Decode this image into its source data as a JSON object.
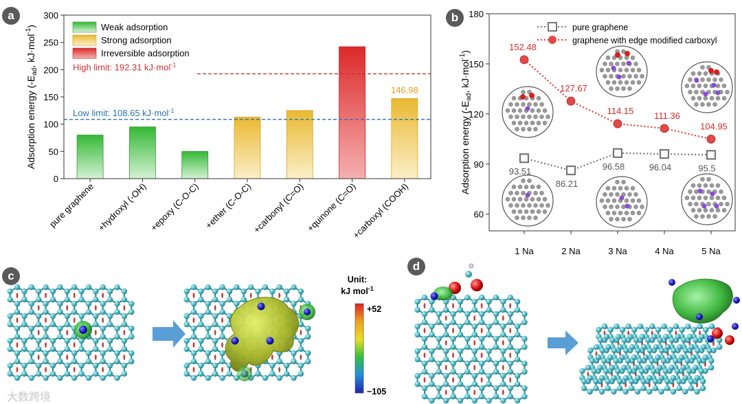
{
  "panels": {
    "a": "a",
    "b": "b",
    "c": "c",
    "d": "d"
  },
  "chart_data": [
    {
      "type": "bar",
      "panel": "a",
      "ylabel": "Adsorption energy (-E",
      "ylabel_sub": "ad",
      "ylabel_unit": ", kJ·mol",
      "ylabel_sup": "-1",
      "ylabel_close": ")",
      "ylim": [
        0,
        300
      ],
      "yticks": [
        "0",
        "50",
        "100",
        "150",
        "200",
        "250",
        "300"
      ],
      "yticks_values": [
        0,
        50,
        100,
        150,
        200,
        250,
        300
      ],
      "categories": [
        "pure graphene",
        "+hydroxyl (-OH)",
        "+epoxy (C-O-C)",
        "+ether (C-O-C)",
        "+carbonyl (C=O)",
        "+quinone (C=O)",
        "+carboxyl (COOH)"
      ],
      "values": [
        80,
        95,
        50,
        113,
        125,
        242,
        146.98
      ],
      "classes": [
        "weak",
        "weak",
        "weak",
        "strong",
        "strong",
        "irreversible",
        "strong"
      ],
      "legend": [
        {
          "key": "weak",
          "label": "Weak adsorption",
          "color": "#3fbf3f"
        },
        {
          "key": "strong",
          "label": "Strong adsorption",
          "color": "#f0c030"
        },
        {
          "key": "irreversible",
          "label": "Irreversible adsorption",
          "color": "#e03030"
        }
      ],
      "data_label": "146.98",
      "data_label_color": "#e0a020",
      "lines": [
        {
          "value": 192.31,
          "label": "High limit: 192.31 kJ·mol",
          "sup": "-1",
          "color": "#d03030"
        },
        {
          "value": 108.65,
          "label": "Low limit: 108.65 kJ·mol",
          "sup": "-1",
          "color": "#2a70b0"
        }
      ]
    },
    {
      "type": "line",
      "panel": "b",
      "ylabel": "Adsorption energy (-E",
      "ylabel_sub": "ad",
      "ylabel_unit": ", kJ·mol",
      "ylabel_sup": "-1",
      "ylabel_close": ")",
      "ylim": [
        50,
        180
      ],
      "yticks": [
        "60",
        "90",
        "120",
        "150",
        "180"
      ],
      "yticks_values": [
        60,
        90,
        120,
        150,
        180
      ],
      "categories": [
        "1 Na",
        "2 Na",
        "3 Na",
        "4 Na",
        "5 Na"
      ],
      "series": [
        {
          "name": "pure graphene",
          "values": [
            93.51,
            86.21,
            96.58,
            96.04,
            95.5
          ],
          "labels": [
            "93.51",
            "86.21",
            "96.58",
            "96.04",
            "95.5"
          ],
          "color": "#777777",
          "marker": "square"
        },
        {
          "name": "graphene with edge modified carboxyl",
          "values": [
            152.48,
            127.67,
            114.15,
            111.36,
            104.95
          ],
          "labels": [
            "152.48",
            "127.67",
            "114.15",
            "111.36",
            "104.95"
          ],
          "color": "#e03c3c",
          "marker": "circle"
        }
      ]
    }
  ],
  "panel_c": {
    "unit_label": "Unit:",
    "unit_value": "kJ mol",
    "unit_sup": "-1",
    "max_label": "+52",
    "min_label": "−105"
  },
  "watermark": "大数跨境"
}
